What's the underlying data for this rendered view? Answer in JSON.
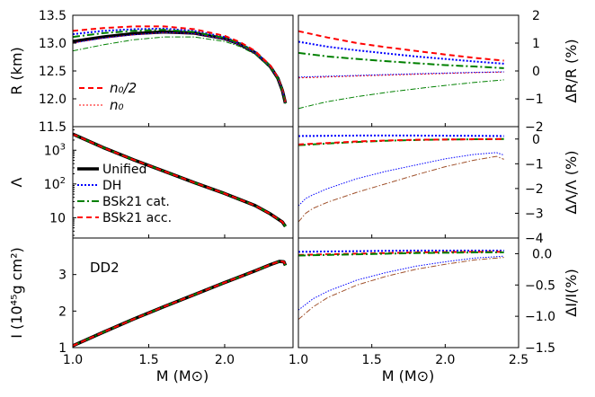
{
  "chart_data": {
    "type": "line",
    "annotation": "DD2",
    "shared_xlabel": "M (M⊙)",
    "legend_main": [
      "Unified",
      "DH",
      "BSk21 cat.",
      "BSk21 acc."
    ],
    "legend_extra": [
      "n₀/2",
      "n₀"
    ],
    "series_styles": {
      "Unified": {
        "color": "#000000",
        "dash": "",
        "width": 3.6
      },
      "DH": {
        "color": "#0000ff",
        "dash": "2,2",
        "width": 2
      },
      "BSk21 cat.": {
        "color": "#008000",
        "dash": "8,3,2,3",
        "width": 2
      },
      "BSk21 acc.": {
        "color": "#ff0000",
        "dash": "6,4",
        "width": 2
      },
      "n0/2": {
        "color": "#ff0000",
        "dash": "6,4",
        "width": 2
      },
      "n0 thin red": {
        "color": "#ff0000",
        "dash": "2,2",
        "width": 1
      },
      "DH thin": {
        "color": "#0000ff",
        "dash": "1.5,1.5",
        "width": 1
      },
      "cat. thin": {
        "color": "#008000",
        "dash": "6,2,1.5,2",
        "width": 1
      },
      "acc. thin": {
        "color": "#a0522d",
        "dash": "6,2,1.5,2",
        "width": 1
      }
    },
    "panels": [
      {
        "id": "R",
        "ylabel": "R (km)",
        "xlim": [
          1.0,
          2.45
        ],
        "ylim": [
          11.5,
          13.5
        ],
        "yticks": [
          "11.5",
          "12.0",
          "12.5",
          "13.0",
          "13.5"
        ],
        "xticks": [],
        "series": [
          {
            "name": "Unified",
            "style": "Unified",
            "x": [
              1.0,
              1.2,
              1.4,
              1.6,
              1.8,
              2.0,
              2.1,
              2.2,
              2.3,
              2.35,
              2.38,
              2.4
            ],
            "y": [
              13.03,
              13.11,
              13.17,
              13.2,
              13.18,
              13.08,
              12.98,
              12.83,
              12.58,
              12.37,
              12.15,
              11.92
            ]
          },
          {
            "name": "DH",
            "style": "DH",
            "x": [
              1.0,
              1.2,
              1.4,
              1.6,
              1.8,
              2.0,
              2.1,
              2.2,
              2.3,
              2.35,
              2.38,
              2.4
            ],
            "y": [
              13.16,
              13.22,
              13.25,
              13.26,
              13.22,
              13.11,
              13.0,
              12.85,
              12.59,
              12.38,
              12.16,
              11.93
            ]
          },
          {
            "name": "BSk21 cat.",
            "style": "BSk21 cat.",
            "x": [
              1.0,
              1.2,
              1.4,
              1.6,
              1.8,
              2.0,
              2.1,
              2.2,
              2.3,
              2.35,
              2.38,
              2.4
            ],
            "y": [
              13.11,
              13.18,
              13.22,
              13.24,
              13.2,
              13.09,
              12.99,
              12.84,
              12.59,
              12.37,
              12.15,
              11.92
            ]
          },
          {
            "name": "BSk21 acc.",
            "style": "BSk21 acc.",
            "x": [
              1.0,
              1.2,
              1.4,
              1.6,
              1.8,
              2.0,
              2.1,
              2.2,
              2.3,
              2.35,
              2.38,
              2.4
            ],
            "y": [
              13.22,
              13.27,
              13.3,
              13.3,
              13.25,
              13.13,
              13.02,
              12.86,
              12.6,
              12.38,
              12.16,
              11.93
            ]
          },
          {
            "name": "n0",
            "style": "n0 thin red",
            "x": [
              1.0,
              1.2,
              1.4,
              1.6,
              1.8,
              2.0,
              2.1,
              2.2,
              2.3,
              2.35,
              2.38,
              2.4
            ],
            "y": [
              13.0,
              13.09,
              13.15,
              13.19,
              13.17,
              13.07,
              12.97,
              12.82,
              12.57,
              12.36,
              12.14,
              11.91
            ]
          },
          {
            "name": "DH n0",
            "style": "DH thin",
            "x": [
              1.0,
              1.2,
              1.4,
              1.6,
              1.8,
              2.0,
              2.1,
              2.2,
              2.3,
              2.35,
              2.38,
              2.4
            ],
            "y": [
              13.0,
              13.09,
              13.15,
              13.19,
              13.17,
              13.07,
              12.97,
              12.82,
              12.57,
              12.36,
              12.14,
              11.91
            ]
          },
          {
            "name": "cat. n0",
            "style": "cat. thin",
            "x": [
              1.0,
              1.2,
              1.4,
              1.6,
              1.8,
              2.0,
              2.1,
              2.2,
              2.3,
              2.35,
              2.38,
              2.4
            ],
            "y": [
              12.86,
              12.97,
              13.06,
              13.11,
              13.11,
              13.03,
              12.94,
              12.8,
              12.56,
              12.36,
              12.14,
              11.91
            ]
          }
        ]
      },
      {
        "id": "dR",
        "ylabel": "ΔR/R (%)",
        "xlim": [
          1.0,
          2.5
        ],
        "ylim": [
          -2.0,
          2.0
        ],
        "yticks": [
          "−2",
          "−1",
          "0",
          "1",
          "2"
        ],
        "xticks": [],
        "series": [
          {
            "name": "BSk21 acc.",
            "style": "BSk21 acc.",
            "x": [
              1.0,
              1.2,
              1.4,
              1.6,
              1.8,
              2.0,
              2.2,
              2.4
            ],
            "y": [
              1.43,
              1.2,
              1.0,
              0.85,
              0.72,
              0.59,
              0.47,
              0.37
            ]
          },
          {
            "name": "DH",
            "style": "DH",
            "x": [
              1.0,
              1.2,
              1.4,
              1.6,
              1.8,
              2.0,
              2.2,
              2.4
            ],
            "y": [
              1.05,
              0.87,
              0.74,
              0.63,
              0.52,
              0.43,
              0.34,
              0.26
            ]
          },
          {
            "name": "BSk21 cat.",
            "style": "BSk21 cat.",
            "x": [
              1.0,
              1.2,
              1.4,
              1.6,
              1.8,
              2.0,
              2.2,
              2.4
            ],
            "y": [
              0.65,
              0.52,
              0.43,
              0.35,
              0.28,
              0.21,
              0.16,
              0.1
            ]
          },
          {
            "name": "n0",
            "style": "n0 thin red",
            "x": [
              1.0,
              1.4,
              1.8,
              2.2,
              2.4
            ],
            "y": [
              -0.25,
              -0.18,
              -0.12,
              -0.06,
              -0.04
            ]
          },
          {
            "name": "DH n0",
            "style": "DH thin",
            "x": [
              1.0,
              1.4,
              1.8,
              2.2,
              2.4
            ],
            "y": [
              -0.22,
              -0.16,
              -0.1,
              -0.05,
              -0.03
            ]
          },
          {
            "name": "cat. n0",
            "style": "cat. thin",
            "x": [
              1.0,
              1.1,
              1.2,
              1.4,
              1.6,
              1.8,
              2.0,
              2.2,
              2.4
            ],
            "y": [
              -1.35,
              -1.22,
              -1.1,
              -0.92,
              -0.77,
              -0.64,
              -0.52,
              -0.41,
              -0.32
            ]
          }
        ]
      },
      {
        "id": "Lambda",
        "ylabel": "Λ",
        "yscale": "log",
        "xlim": [
          1.0,
          2.45
        ],
        "ylim": [
          2.5,
          5000
        ],
        "yticks": [
          "10",
          "10²",
          "10³"
        ],
        "ytick_values": [
          10,
          100,
          1000
        ],
        "xticks": [],
        "series": [
          {
            "name": "Unified",
            "style": "Unified",
            "x": [
              1.0,
              1.2,
              1.4,
              1.6,
              1.8,
              2.0,
              2.2,
              2.3,
              2.38,
              2.4
            ],
            "y": [
              3000,
              1200,
              520,
              240,
              110,
              52,
              23,
              13,
              7.5,
              5.5
            ]
          },
          {
            "name": "BSk21 cat.",
            "style": "BSk21 cat.",
            "x": [
              1.0,
              1.2,
              1.4,
              1.6,
              1.8,
              2.0,
              2.2,
              2.3,
              2.38,
              2.4
            ],
            "y": [
              3000,
              1200,
              520,
              240,
              110,
              52,
              23,
              13,
              7.5,
              5.5
            ]
          },
          {
            "name": "BSk21 acc.",
            "style": "BSk21 acc.",
            "x": [
              1.0,
              1.2,
              1.4,
              1.6,
              1.8,
              2.0,
              2.2,
              2.3,
              2.38,
              2.4
            ],
            "y": [
              3000,
              1200,
              520,
              240,
              110,
              52,
              23,
              13,
              7.5,
              5.5
            ]
          }
        ]
      },
      {
        "id": "dLambda",
        "ylabel": "ΔΛ/Λ (%)",
        "xlim": [
          1.0,
          2.5
        ],
        "ylim": [
          -4.0,
          0.5
        ],
        "yticks": [
          "−4",
          "−3",
          "−2",
          "−1",
          "0"
        ],
        "ytick_values": [
          -4,
          -3,
          -2,
          -1,
          0
        ],
        "xticks": [],
        "series": [
          {
            "name": "DH",
            "style": "DH",
            "x": [
              1.0,
              1.4,
              1.8,
              2.2,
              2.4
            ],
            "y": [
              0.12,
              0.14,
              0.14,
              0.13,
              0.12
            ]
          },
          {
            "name": "BSk21 cat.",
            "style": "BSk21 cat.",
            "x": [
              1.0,
              1.2,
              1.4,
              1.6,
              1.8,
              2.0,
              2.2,
              2.4
            ],
            "y": [
              -0.25,
              -0.18,
              -0.12,
              -0.07,
              -0.04,
              -0.02,
              -0.01,
              0.0
            ]
          },
          {
            "name": "BSk21 acc.",
            "style": "BSk21 acc.",
            "x": [
              1.0,
              1.2,
              1.4,
              1.6,
              1.8,
              2.0,
              2.2,
              2.4
            ],
            "y": [
              -0.22,
              -0.16,
              -0.1,
              -0.06,
              -0.03,
              -0.02,
              -0.01,
              0.0
            ]
          },
          {
            "name": "DH n0",
            "style": "DH thin",
            "x": [
              1.0,
              1.05,
              1.1,
              1.2,
              1.3,
              1.4,
              1.6,
              1.8,
              2.0,
              2.2,
              2.35,
              2.4
            ],
            "y": [
              -2.7,
              -2.4,
              -2.25,
              -2.0,
              -1.8,
              -1.6,
              -1.3,
              -1.05,
              -0.8,
              -0.62,
              -0.55,
              -0.65
            ]
          },
          {
            "name": "acc. n0",
            "style": "acc. thin",
            "x": [
              1.0,
              1.05,
              1.1,
              1.2,
              1.3,
              1.4,
              1.6,
              1.8,
              2.0,
              2.2,
              2.35,
              2.4
            ],
            "y": [
              -3.35,
              -3.0,
              -2.8,
              -2.55,
              -2.35,
              -2.15,
              -1.8,
              -1.45,
              -1.12,
              -0.85,
              -0.7,
              -0.82
            ]
          }
        ]
      },
      {
        "id": "I",
        "ylabel": "I (10⁴⁵g cm²)",
        "xlim": [
          1.0,
          2.45
        ],
        "ylim": [
          1.0,
          4.0
        ],
        "yticks": [
          "1",
          "2",
          "3"
        ],
        "ytick_values": [
          1,
          2,
          3
        ],
        "xticks": [
          "1.0",
          "1.5",
          "2.0"
        ],
        "xtick_values": [
          1.0,
          1.5,
          2.0
        ],
        "series": [
          {
            "name": "Unified",
            "style": "Unified",
            "x": [
              1.0,
              1.2,
              1.4,
              1.6,
              1.8,
              2.0,
              2.2,
              2.3,
              2.36,
              2.39,
              2.4
            ],
            "y": [
              1.05,
              1.42,
              1.78,
              2.12,
              2.45,
              2.78,
              3.1,
              3.27,
              3.36,
              3.35,
              3.25
            ]
          },
          {
            "name": "BSk21 cat.",
            "style": "BSk21 cat.",
            "x": [
              1.0,
              1.2,
              1.4,
              1.6,
              1.8,
              2.0,
              2.2,
              2.3,
              2.36,
              2.39,
              2.4
            ],
            "y": [
              1.05,
              1.42,
              1.78,
              2.12,
              2.45,
              2.78,
              3.1,
              3.27,
              3.36,
              3.35,
              3.25
            ]
          },
          {
            "name": "BSk21 acc.",
            "style": "BSk21 acc.",
            "x": [
              1.0,
              1.2,
              1.4,
              1.6,
              1.8,
              2.0,
              2.2,
              2.3,
              2.36,
              2.39,
              2.4
            ],
            "y": [
              1.05,
              1.42,
              1.78,
              2.12,
              2.45,
              2.78,
              3.1,
              3.27,
              3.36,
              3.35,
              3.25
            ]
          }
        ]
      },
      {
        "id": "dI",
        "ylabel": "ΔI/I(%)",
        "xlim": [
          1.0,
          2.5
        ],
        "ylim": [
          -1.5,
          0.25
        ],
        "yticks": [
          "−1.5",
          "−1.0",
          "−0.5",
          "0.0"
        ],
        "ytick_values": [
          -1.5,
          -1.0,
          -0.5,
          0.0
        ],
        "xticks": [
          "1.0",
          "1.5",
          "2.0",
          "2.5"
        ],
        "xtick_values": [
          1.0,
          1.5,
          2.0,
          2.5
        ],
        "series": [
          {
            "name": "DH",
            "style": "DH",
            "x": [
              1.0,
              1.4,
              1.8,
              2.2,
              2.4
            ],
            "y": [
              0.03,
              0.04,
              0.05,
              0.05,
              0.05
            ]
          },
          {
            "name": "BSk21 acc.",
            "style": "BSk21 acc.",
            "x": [
              1.0,
              1.4,
              1.8,
              2.2,
              2.4
            ],
            "y": [
              -0.02,
              0.0,
              0.02,
              0.03,
              0.03
            ]
          },
          {
            "name": "BSk21 cat.",
            "style": "BSk21 cat.",
            "x": [
              1.0,
              1.4,
              1.8,
              2.2,
              2.4
            ],
            "y": [
              -0.03,
              -0.01,
              0.01,
              0.02,
              0.02
            ]
          },
          {
            "name": "DH n0",
            "style": "DH thin",
            "x": [
              1.0,
              1.1,
              1.2,
              1.4,
              1.6,
              1.8,
              2.0,
              2.2,
              2.4
            ],
            "y": [
              -0.9,
              -0.72,
              -0.6,
              -0.42,
              -0.3,
              -0.2,
              -0.13,
              -0.07,
              -0.04
            ]
          },
          {
            "name": "acc. n0",
            "style": "acc. thin",
            "x": [
              1.0,
              1.1,
              1.2,
              1.4,
              1.6,
              1.8,
              2.0,
              2.2,
              2.4
            ],
            "y": [
              -1.05,
              -0.85,
              -0.7,
              -0.5,
              -0.36,
              -0.25,
              -0.17,
              -0.1,
              -0.06
            ]
          }
        ]
      }
    ]
  }
}
